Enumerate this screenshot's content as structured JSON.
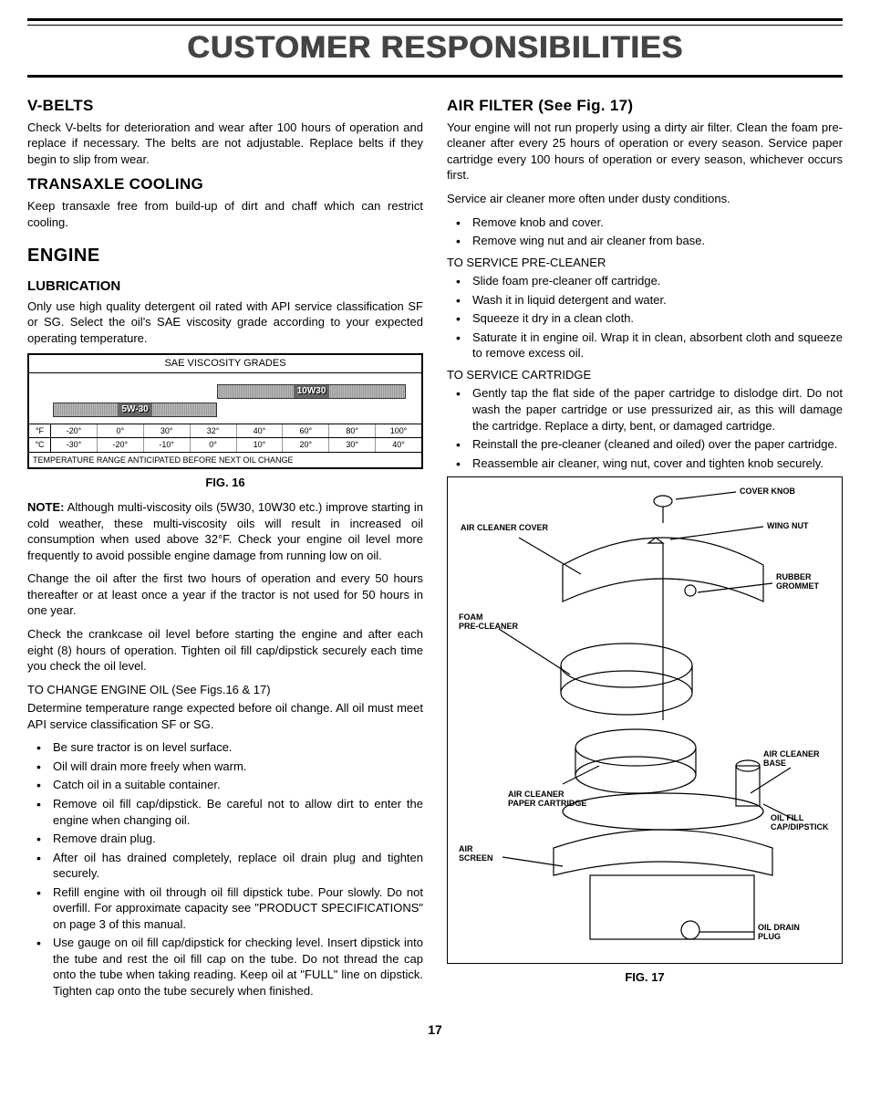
{
  "page_title": "CUSTOMER RESPONSIBILITIES",
  "page_number": "17",
  "left": {
    "vbelts": {
      "heading": "V-BELTS",
      "body": "Check V-belts for deterioration and wear after 100 hours of operation and replace if necessary. The belts are not adjustable. Replace belts if they begin to slip from wear."
    },
    "transaxle": {
      "heading": "TRANSAXLE COOLING",
      "body": "Keep transaxle free from build-up of dirt and chaff which can restrict cooling."
    },
    "engine_heading": "ENGINE",
    "lubrication": {
      "heading": "LUBRICATION",
      "body": "Only use high quality detergent oil rated with API service classification SF or SG. Select the oil's SAE viscosity grade according to your expected operating temperature."
    },
    "viscosity": {
      "title": "SAE VISCOSITY GRADES",
      "bar1_label": "5W-30",
      "bar2_label": "10W30",
      "f_marks": [
        "°F",
        "-20°",
        "0°",
        "30°",
        "32°",
        "40°",
        "60°",
        "80°",
        "100°"
      ],
      "c_marks": [
        "°C",
        "-30°",
        "-20°",
        "-10°",
        "0°",
        "10°",
        "20°",
        "30°",
        "40°"
      ],
      "note": "TEMPERATURE RANGE ANTICIPATED BEFORE NEXT OIL CHANGE"
    },
    "fig16_caption": "FIG. 16",
    "note_para": "NOTE: Although multi-viscosity oils (5W30, 10W30 etc.) improve starting in cold weather, these multi-viscosity oils will result in increased oil consumption when used above 32°F. Check your engine oil level more frequently to avoid possible engine damage from running low on oil.",
    "change_para": "Change the oil after the first two hours of operation and every 50 hours thereafter or at least once a year if the tractor is not used for 50 hours in one year.",
    "check_para": "Check the crankcase oil level before starting the engine and after each eight (8) hours of operation. Tighten oil fill cap/dipstick securely each time you check the oil level.",
    "to_change_heading": "TO CHANGE ENGINE OIL (See Figs.16 & 17)",
    "determine_para": "Determine temperature range expected before oil change. All oil must meet API service classification SF or SG.",
    "steps": [
      "Be sure tractor is on level surface.",
      "Oil will drain more freely when warm.",
      "Catch oil in a suitable container.",
      "Remove oil fill cap/dipstick. Be careful not to allow dirt to enter the engine when changing oil.",
      "Remove drain plug.",
      "After oil has drained completely, replace oil drain plug and tighten securely.",
      "Refill engine with oil through oil fill dipstick tube. Pour slowly. Do not overfill. For approximate capacity see \"PRODUCT SPECIFICATIONS\" on page 3 of this manual.",
      "Use gauge on oil fill cap/dipstick for checking level. Insert dipstick into the tube and rest the oil fill cap on the tube. Do not thread the cap onto the tube when taking reading. Keep oil at \"FULL\" line on dipstick. Tighten cap onto the tube securely when finished."
    ]
  },
  "right": {
    "airfilter": {
      "heading": "AIR FILTER (See Fig. 17)",
      "body": "Your engine will not run properly using a dirty air filter. Clean the foam pre-cleaner after every 25 hours of operation or every season. Service paper cartridge every 100 hours of operation or every season, whichever occurs first.",
      "service_line": "Service air cleaner more often under dusty conditions.",
      "remove_steps": [
        "Remove knob and cover.",
        "Remove wing nut and air cleaner from base."
      ],
      "precleaner_heading": "TO SERVICE PRE-CLEANER",
      "precleaner_steps": [
        "Slide foam pre-cleaner off cartridge.",
        "Wash it in liquid detergent and water.",
        "Squeeze it dry in a clean cloth.",
        "Saturate it in engine oil. Wrap it in clean, absorbent cloth and squeeze to remove excess oil."
      ],
      "cartridge_heading": "TO SERVICE CARTRIDGE",
      "cartridge_steps": [
        "Gently tap the flat side of the paper cartridge to dislodge dirt. Do not wash the paper cartridge or use pressurized air, as this will damage the cartridge. Replace a dirty, bent, or damaged cartridge.",
        "Reinstall the pre-cleaner (cleaned and oiled) over the paper cartridge.",
        "Reassemble air cleaner, wing nut, cover and tighten knob securely."
      ]
    },
    "fig17_caption": "FIG. 17",
    "labels": {
      "cover_knob": "COVER KNOB",
      "air_cleaner_cover": "AIR CLEANER COVER",
      "wing_nut": "WING NUT",
      "rubber_grommet": "RUBBER GROMMET",
      "foam_precleaner": "FOAM PRE-CLEANER",
      "air_cleaner_paper": "AIR CLEANER PAPER CARTRIDGE",
      "air_cleaner_base": "AIR CLEANER BASE",
      "oil_fill": "OIL FILL CAP/DIPSTICK",
      "air_screen": "AIR SCREEN",
      "oil_drain": "OIL DRAIN PLUG"
    }
  }
}
